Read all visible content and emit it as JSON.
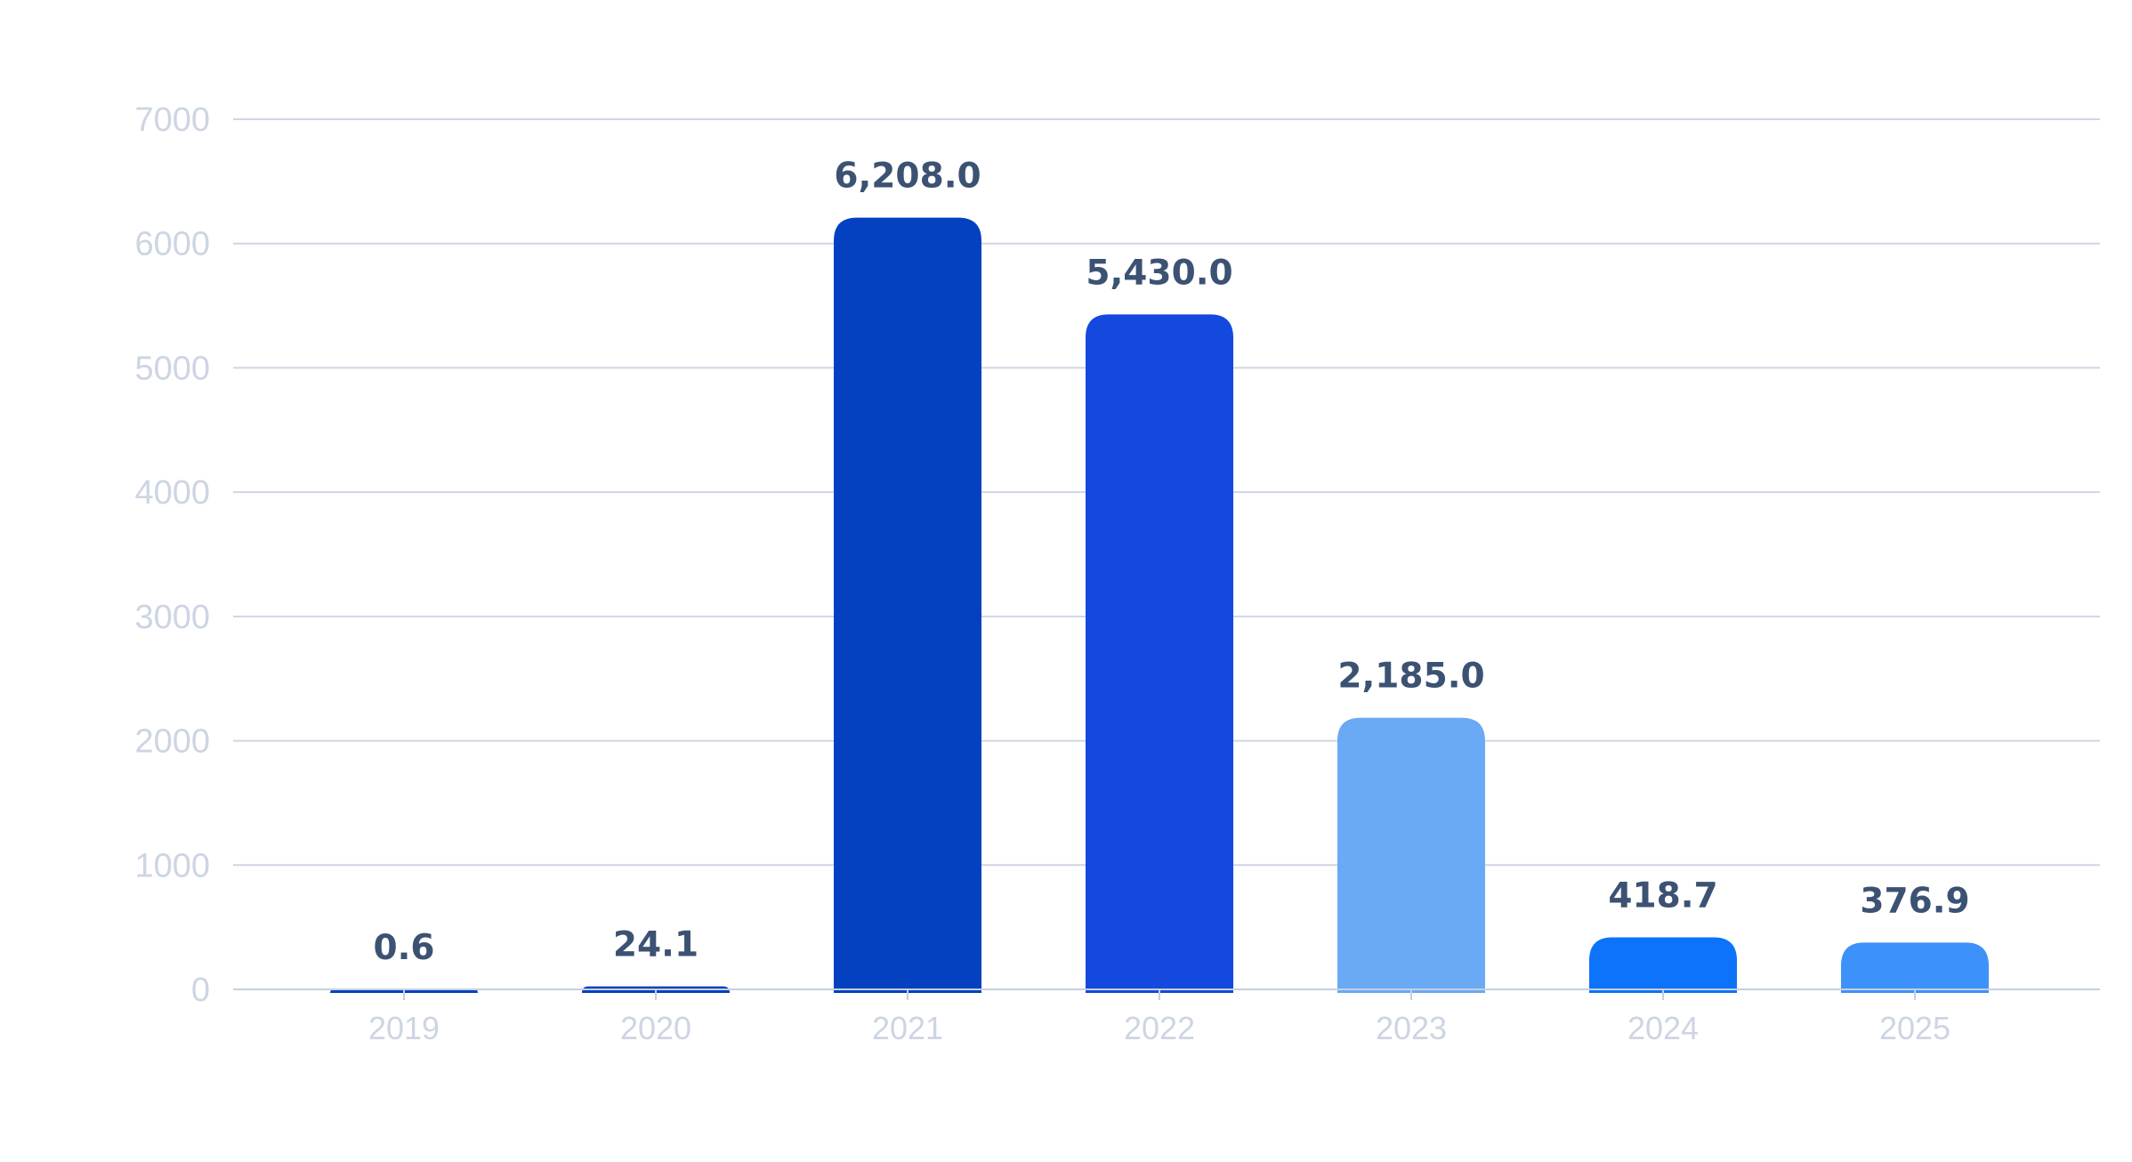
{
  "chart_data": {
    "type": "bar",
    "title": "",
    "xlabel": "",
    "ylabel": "",
    "categories": [
      "2019",
      "2020",
      "2021",
      "2022",
      "2023",
      "2024",
      "2025"
    ],
    "values": [
      0.6,
      24.1,
      6208.0,
      5430.0,
      2185.0,
      418.7,
      376.9
    ],
    "data_labels": [
      "0.6",
      "24.1",
      "6,208.0",
      "5,430.0",
      "2,185.0",
      "418.7",
      "376.9"
    ],
    "bar_colors": [
      "#0341c1",
      "#0341c1",
      "#0341c1",
      "#1449df",
      "#6aa9f4",
      "#0d73fa",
      "#3c92fa"
    ],
    "ylim": [
      0,
      7000
    ],
    "y_ticks": [
      "0",
      "1000",
      "2000",
      "3000",
      "4000",
      "5000",
      "6000",
      "7000"
    ],
    "grid": true,
    "legend": "none"
  }
}
